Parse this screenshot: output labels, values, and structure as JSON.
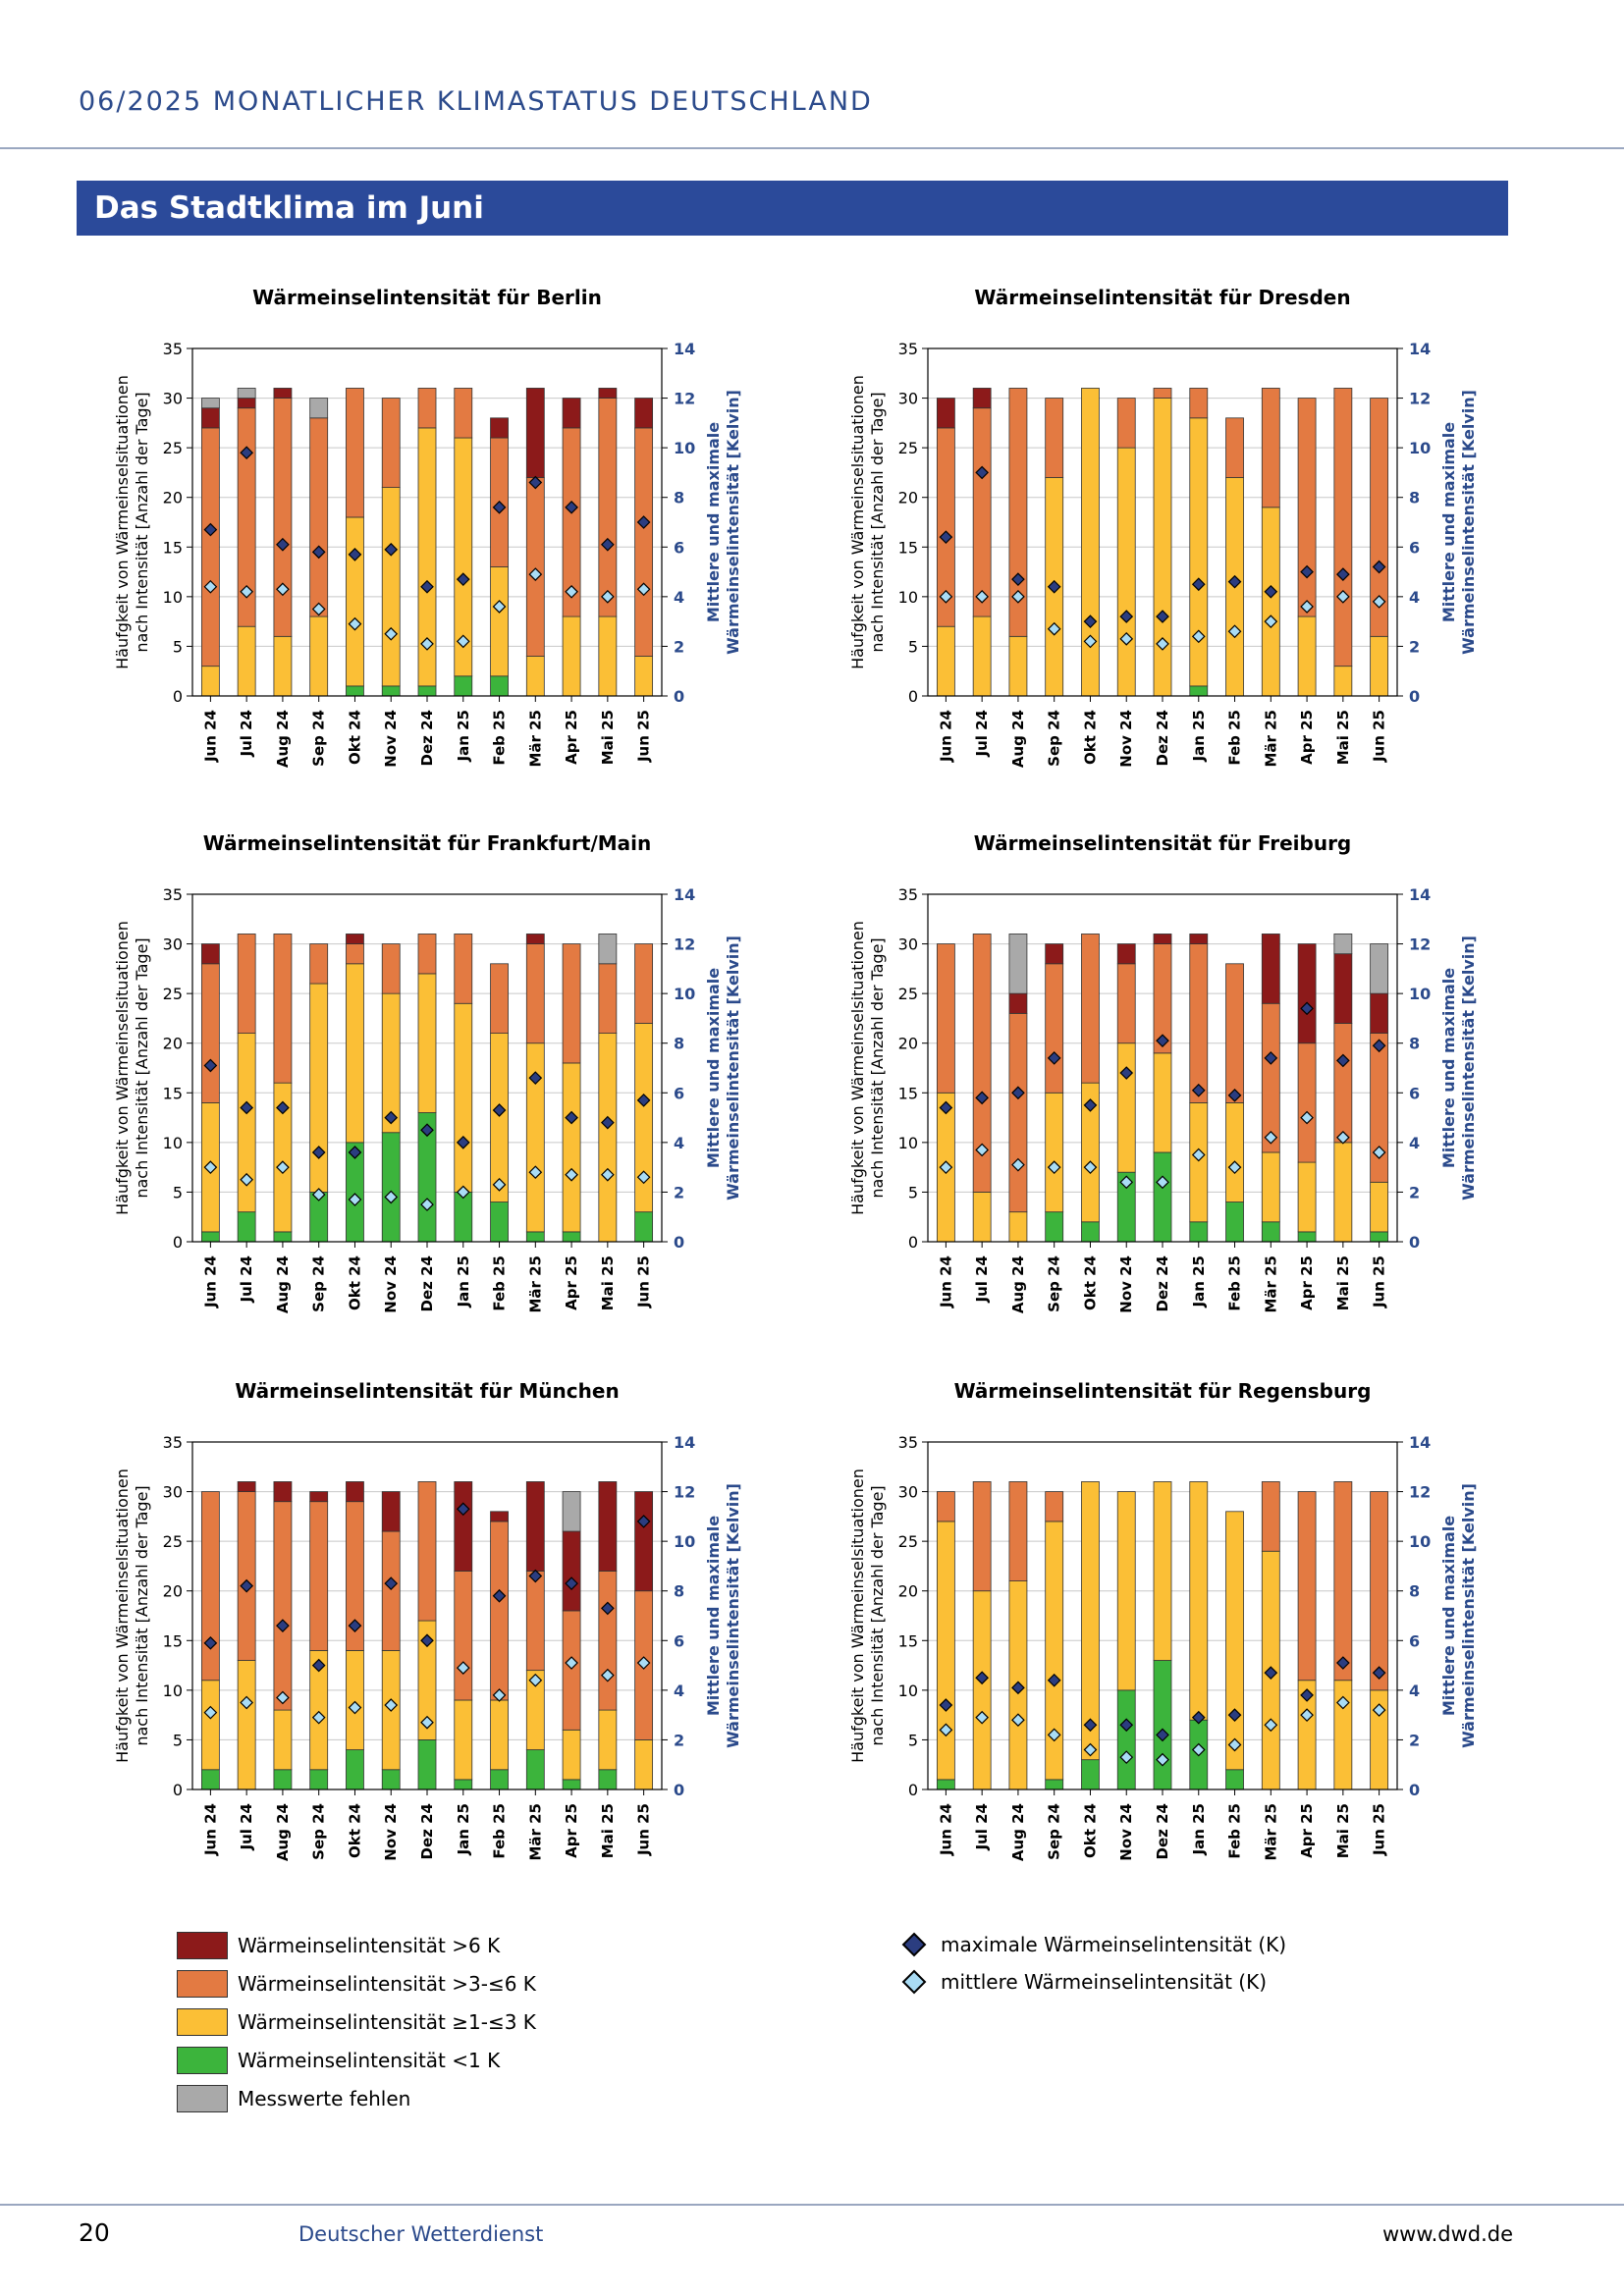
{
  "header": {
    "title": "06/2025  MONATLICHER KLIMASTATUS DEUTSCHLAND"
  },
  "section": {
    "title": "Das Stadtklima im Juni"
  },
  "axes": {
    "left_label_line1": "Häufgkeit von Wärmeinselsituationen",
    "left_label_line2": "nach Intensität [Anzahl der Tage]",
    "right_label_line1": "Mittlere und maximale",
    "right_label_line2": "Wärmeinselintensität [Kelvin]"
  },
  "colors": {
    "gt6": "#8c1a1a",
    "gt3le6": "#e37a42",
    "ge1le3": "#fbbf36",
    "lt1": "#3cb43c",
    "missing": "#a9a9a9",
    "max_marker": "#2b3d80",
    "mean_marker": "#a9dcf5",
    "right_axis_text": "#2b4a8b"
  },
  "chart_data": [
    {
      "type": "bar",
      "title": "Wärmeinselintensität für Berlin",
      "categories": [
        "Jun 24",
        "Jul 24",
        "Aug 24",
        "Sep 24",
        "Okt 24",
        "Nov 24",
        "Dez 24",
        "Jan 25",
        "Feb 25",
        "Mär 25",
        "Apr 25",
        "Mai 25",
        "Jun 25"
      ],
      "ylim": [
        0,
        35
      ],
      "y2lim": [
        0,
        14
      ],
      "yticks": [
        "0",
        "5",
        "10",
        "15",
        "20",
        "25",
        "30",
        "35"
      ],
      "y2ticks": [
        "0",
        "2",
        "4",
        "6",
        "8",
        "10",
        "12",
        "14"
      ],
      "series": [
        {
          "key": "lt1",
          "values": [
            0,
            0,
            0,
            0,
            1,
            1,
            1,
            2,
            2,
            0,
            0,
            0,
            0
          ]
        },
        {
          "key": "ge1le3",
          "values": [
            3,
            7,
            6,
            8,
            17,
            20,
            26,
            24,
            11,
            4,
            8,
            8,
            4
          ]
        },
        {
          "key": "gt3le6",
          "values": [
            24,
            22,
            24,
            20,
            13,
            9,
            4,
            5,
            13,
            18,
            19,
            22,
            23
          ]
        },
        {
          "key": "gt6",
          "values": [
            2,
            1,
            1,
            0,
            0,
            0,
            0,
            0,
            2,
            9,
            3,
            1,
            3
          ]
        },
        {
          "key": "missing",
          "values": [
            1,
            1,
            0,
            2,
            0,
            0,
            0,
            0,
            0,
            0,
            0,
            0,
            0
          ]
        }
      ],
      "max": [
        6.7,
        9.8,
        6.1,
        5.8,
        5.7,
        5.9,
        4.4,
        4.7,
        7.6,
        8.6,
        7.6,
        6.1,
        7.0
      ],
      "mean": [
        4.4,
        4.2,
        4.3,
        3.5,
        2.9,
        2.5,
        2.1,
        2.2,
        3.6,
        4.9,
        4.2,
        4.0,
        4.3
      ]
    },
    {
      "type": "bar",
      "title": "Wärmeinselintensität für Dresden",
      "categories": [
        "Jun 24",
        "Jul 24",
        "Aug 24",
        "Sep 24",
        "Okt 24",
        "Nov 24",
        "Dez 24",
        "Jan 25",
        "Feb 25",
        "Mär 25",
        "Apr 25",
        "Mai 25",
        "Jun 25"
      ],
      "ylim": [
        0,
        35
      ],
      "y2lim": [
        0,
        14
      ],
      "yticks": [
        "0",
        "5",
        "10",
        "15",
        "20",
        "25",
        "30",
        "35"
      ],
      "y2ticks": [
        "0",
        "2",
        "4",
        "6",
        "8",
        "10",
        "12",
        "14"
      ],
      "series": [
        {
          "key": "lt1",
          "values": [
            0,
            0,
            0,
            0,
            0,
            0,
            0,
            1,
            0,
            0,
            0,
            0,
            0
          ]
        },
        {
          "key": "ge1le3",
          "values": [
            7,
            8,
            6,
            22,
            31,
            25,
            30,
            27,
            22,
            19,
            8,
            3,
            6
          ]
        },
        {
          "key": "gt3le6",
          "values": [
            20,
            21,
            25,
            8,
            0,
            5,
            1,
            3,
            6,
            12,
            22,
            28,
            24
          ]
        },
        {
          "key": "gt6",
          "values": [
            3,
            2,
            0,
            0,
            0,
            0,
            0,
            0,
            0,
            0,
            0,
            0,
            0
          ]
        },
        {
          "key": "missing",
          "values": [
            0,
            0,
            0,
            0,
            0,
            0,
            0,
            0,
            0,
            0,
            0,
            0,
            0
          ]
        }
      ],
      "max": [
        6.4,
        9.0,
        4.7,
        4.4,
        3.0,
        3.2,
        3.2,
        4.5,
        4.6,
        4.2,
        5.0,
        4.9,
        5.2
      ],
      "mean": [
        4.0,
        4.0,
        4.0,
        2.7,
        2.2,
        2.3,
        2.1,
        2.4,
        2.6,
        3.0,
        3.6,
        4.0,
        3.8
      ]
    },
    {
      "type": "bar",
      "title": "Wärmeinselintensität für Frankfurt/Main",
      "categories": [
        "Jun 24",
        "Jul 24",
        "Aug 24",
        "Sep 24",
        "Okt 24",
        "Nov 24",
        "Dez 24",
        "Jan 25",
        "Feb 25",
        "Mär 25",
        "Apr 25",
        "Mai 25",
        "Jun 25"
      ],
      "ylim": [
        0,
        35
      ],
      "y2lim": [
        0,
        14
      ],
      "yticks": [
        "0",
        "5",
        "10",
        "15",
        "20",
        "25",
        "30",
        "35"
      ],
      "y2ticks": [
        "0",
        "2",
        "4",
        "6",
        "8",
        "10",
        "12",
        "14"
      ],
      "series": [
        {
          "key": "lt1",
          "values": [
            1,
            3,
            1,
            5,
            10,
            11,
            13,
            5,
            4,
            1,
            1,
            0,
            3
          ]
        },
        {
          "key": "ge1le3",
          "values": [
            13,
            18,
            15,
            21,
            18,
            14,
            14,
            19,
            17,
            19,
            17,
            21,
            19
          ]
        },
        {
          "key": "gt3le6",
          "values": [
            14,
            10,
            15,
            4,
            2,
            5,
            4,
            7,
            7,
            10,
            12,
            7,
            8
          ]
        },
        {
          "key": "gt6",
          "values": [
            2,
            0,
            0,
            0,
            1,
            0,
            0,
            0,
            0,
            1,
            0,
            0,
            0
          ]
        },
        {
          "key": "missing",
          "values": [
            0,
            0,
            0,
            0,
            0,
            0,
            0,
            0,
            0,
            0,
            0,
            3,
            0
          ]
        }
      ],
      "max": [
        7.1,
        5.4,
        5.4,
        3.6,
        3.6,
        5.0,
        4.5,
        4.0,
        5.3,
        6.6,
        5.0,
        4.8,
        5.7
      ],
      "mean": [
        3.0,
        2.5,
        3.0,
        1.9,
        1.7,
        1.8,
        1.5,
        2.0,
        2.3,
        2.8,
        2.7,
        2.7,
        2.6
      ]
    },
    {
      "type": "bar",
      "title": "Wärmeinselintensität für Freiburg",
      "categories": [
        "Jun 24",
        "Jul 24",
        "Aug 24",
        "Sep 24",
        "Okt 24",
        "Nov 24",
        "Dez 24",
        "Jan 25",
        "Feb 25",
        "Mär 25",
        "Apr 25",
        "Mai 25",
        "Jun 25"
      ],
      "ylim": [
        0,
        35
      ],
      "y2lim": [
        0,
        14
      ],
      "yticks": [
        "0",
        "5",
        "10",
        "15",
        "20",
        "25",
        "30",
        "35"
      ],
      "y2ticks": [
        "0",
        "2",
        "4",
        "6",
        "8",
        "10",
        "12",
        "14"
      ],
      "series": [
        {
          "key": "lt1",
          "values": [
            0,
            0,
            0,
            3,
            2,
            7,
            9,
            2,
            4,
            2,
            1,
            0,
            1
          ]
        },
        {
          "key": "ge1le3",
          "values": [
            15,
            5,
            3,
            12,
            14,
            13,
            10,
            12,
            10,
            7,
            7,
            10,
            5
          ]
        },
        {
          "key": "gt3le6",
          "values": [
            15,
            26,
            20,
            13,
            15,
            8,
            11,
            16,
            14,
            15,
            12,
            12,
            15
          ]
        },
        {
          "key": "gt6",
          "values": [
            0,
            0,
            2,
            2,
            0,
            2,
            1,
            1,
            0,
            7,
            10,
            7,
            4
          ]
        },
        {
          "key": "missing",
          "values": [
            0,
            0,
            6,
            0,
            0,
            0,
            0,
            0,
            0,
            0,
            0,
            2,
            5
          ]
        }
      ],
      "max": [
        5.4,
        5.8,
        6.0,
        7.4,
        5.5,
        6.8,
        8.1,
        6.1,
        5.9,
        7.4,
        9.4,
        7.3,
        7.9
      ],
      "mean": [
        3.0,
        3.7,
        3.1,
        3.0,
        3.0,
        2.4,
        2.4,
        3.5,
        3.0,
        4.2,
        5.0,
        4.2,
        3.6
      ]
    },
    {
      "type": "bar",
      "title": "Wärmeinselintensität für München",
      "categories": [
        "Jun 24",
        "Jul 24",
        "Aug 24",
        "Sep 24",
        "Okt 24",
        "Nov 24",
        "Dez 24",
        "Jan 25",
        "Feb 25",
        "Mär 25",
        "Apr 25",
        "Mai 25",
        "Jun 25"
      ],
      "ylim": [
        0,
        35
      ],
      "y2lim": [
        0,
        14
      ],
      "yticks": [
        "0",
        "5",
        "10",
        "15",
        "20",
        "25",
        "30",
        "35"
      ],
      "y2ticks": [
        "0",
        "2",
        "4",
        "6",
        "8",
        "10",
        "12",
        "14"
      ],
      "series": [
        {
          "key": "lt1",
          "values": [
            2,
            0,
            2,
            2,
            4,
            2,
            5,
            1,
            2,
            4,
            1,
            2,
            0
          ]
        },
        {
          "key": "ge1le3",
          "values": [
            9,
            13,
            6,
            12,
            10,
            12,
            12,
            8,
            7,
            8,
            5,
            6,
            5
          ]
        },
        {
          "key": "gt3le6",
          "values": [
            19,
            17,
            21,
            15,
            15,
            12,
            14,
            13,
            18,
            10,
            12,
            14,
            15
          ]
        },
        {
          "key": "gt6",
          "values": [
            0,
            1,
            2,
            1,
            2,
            4,
            0,
            9,
            1,
            9,
            8,
            9,
            10
          ]
        },
        {
          "key": "missing",
          "values": [
            0,
            0,
            0,
            0,
            0,
            0,
            0,
            0,
            0,
            0,
            4,
            0,
            0
          ]
        }
      ],
      "max": [
        5.9,
        8.2,
        6.6,
        5.0,
        6.6,
        8.3,
        6.0,
        11.3,
        7.8,
        8.6,
        8.3,
        7.3,
        10.8
      ],
      "mean": [
        3.1,
        3.5,
        3.7,
        2.9,
        3.3,
        3.4,
        2.7,
        4.9,
        3.8,
        4.4,
        5.1,
        4.6,
        5.1
      ]
    },
    {
      "type": "bar",
      "title": "Wärmeinselintensität für Regensburg",
      "categories": [
        "Jun 24",
        "Jul 24",
        "Aug 24",
        "Sep 24",
        "Okt 24",
        "Nov 24",
        "Dez 24",
        "Jan 25",
        "Feb 25",
        "Mär 25",
        "Apr 25",
        "Mai 25",
        "Jun 25"
      ],
      "ylim": [
        0,
        35
      ],
      "y2lim": [
        0,
        14
      ],
      "yticks": [
        "0",
        "5",
        "10",
        "15",
        "20",
        "25",
        "30",
        "35"
      ],
      "y2ticks": [
        "0",
        "2",
        "4",
        "6",
        "8",
        "10",
        "12",
        "14"
      ],
      "series": [
        {
          "key": "lt1",
          "values": [
            1,
            0,
            0,
            1,
            3,
            10,
            13,
            7,
            2,
            0,
            0,
            0,
            0
          ]
        },
        {
          "key": "ge1le3",
          "values": [
            26,
            20,
            21,
            26,
            28,
            20,
            18,
            24,
            26,
            24,
            11,
            11,
            10
          ]
        },
        {
          "key": "gt3le6",
          "values": [
            3,
            11,
            10,
            3,
            0,
            0,
            0,
            0,
            0,
            7,
            19,
            20,
            20
          ]
        },
        {
          "key": "gt6",
          "values": [
            0,
            0,
            0,
            0,
            0,
            0,
            0,
            0,
            0,
            0,
            0,
            0,
            0
          ]
        },
        {
          "key": "missing",
          "values": [
            0,
            0,
            0,
            0,
            0,
            0,
            0,
            0,
            0,
            0,
            0,
            0,
            0
          ]
        }
      ],
      "max": [
        3.4,
        4.5,
        4.1,
        4.4,
        2.6,
        2.6,
        2.2,
        2.9,
        3.0,
        4.7,
        3.8,
        5.1,
        4.7
      ],
      "mean": [
        2.4,
        2.9,
        2.8,
        2.2,
        1.6,
        1.3,
        1.2,
        1.6,
        1.8,
        2.6,
        3.0,
        3.5,
        3.2
      ]
    }
  ],
  "legend": {
    "items": [
      {
        "key": "gt6",
        "label": "Wärmeinselintensität >6 K"
      },
      {
        "key": "gt3le6",
        "label": "Wärmeinselintensität >3-≤6 K"
      },
      {
        "key": "ge1le3",
        "label": "Wärmeinselintensität ≥1-≤3 K"
      },
      {
        "key": "lt1",
        "label": "Wärmeinselintensität <1 K"
      },
      {
        "key": "missing",
        "label": "Messwerte fehlen"
      }
    ],
    "max_label": "maximale Wärmeinselintensität (K)",
    "mean_label": "mittlere Wärmeinselintensität (K)"
  },
  "footer": {
    "page_number": "20",
    "organization": "Deutscher Wetterdienst",
    "url": "www.dwd.de"
  }
}
